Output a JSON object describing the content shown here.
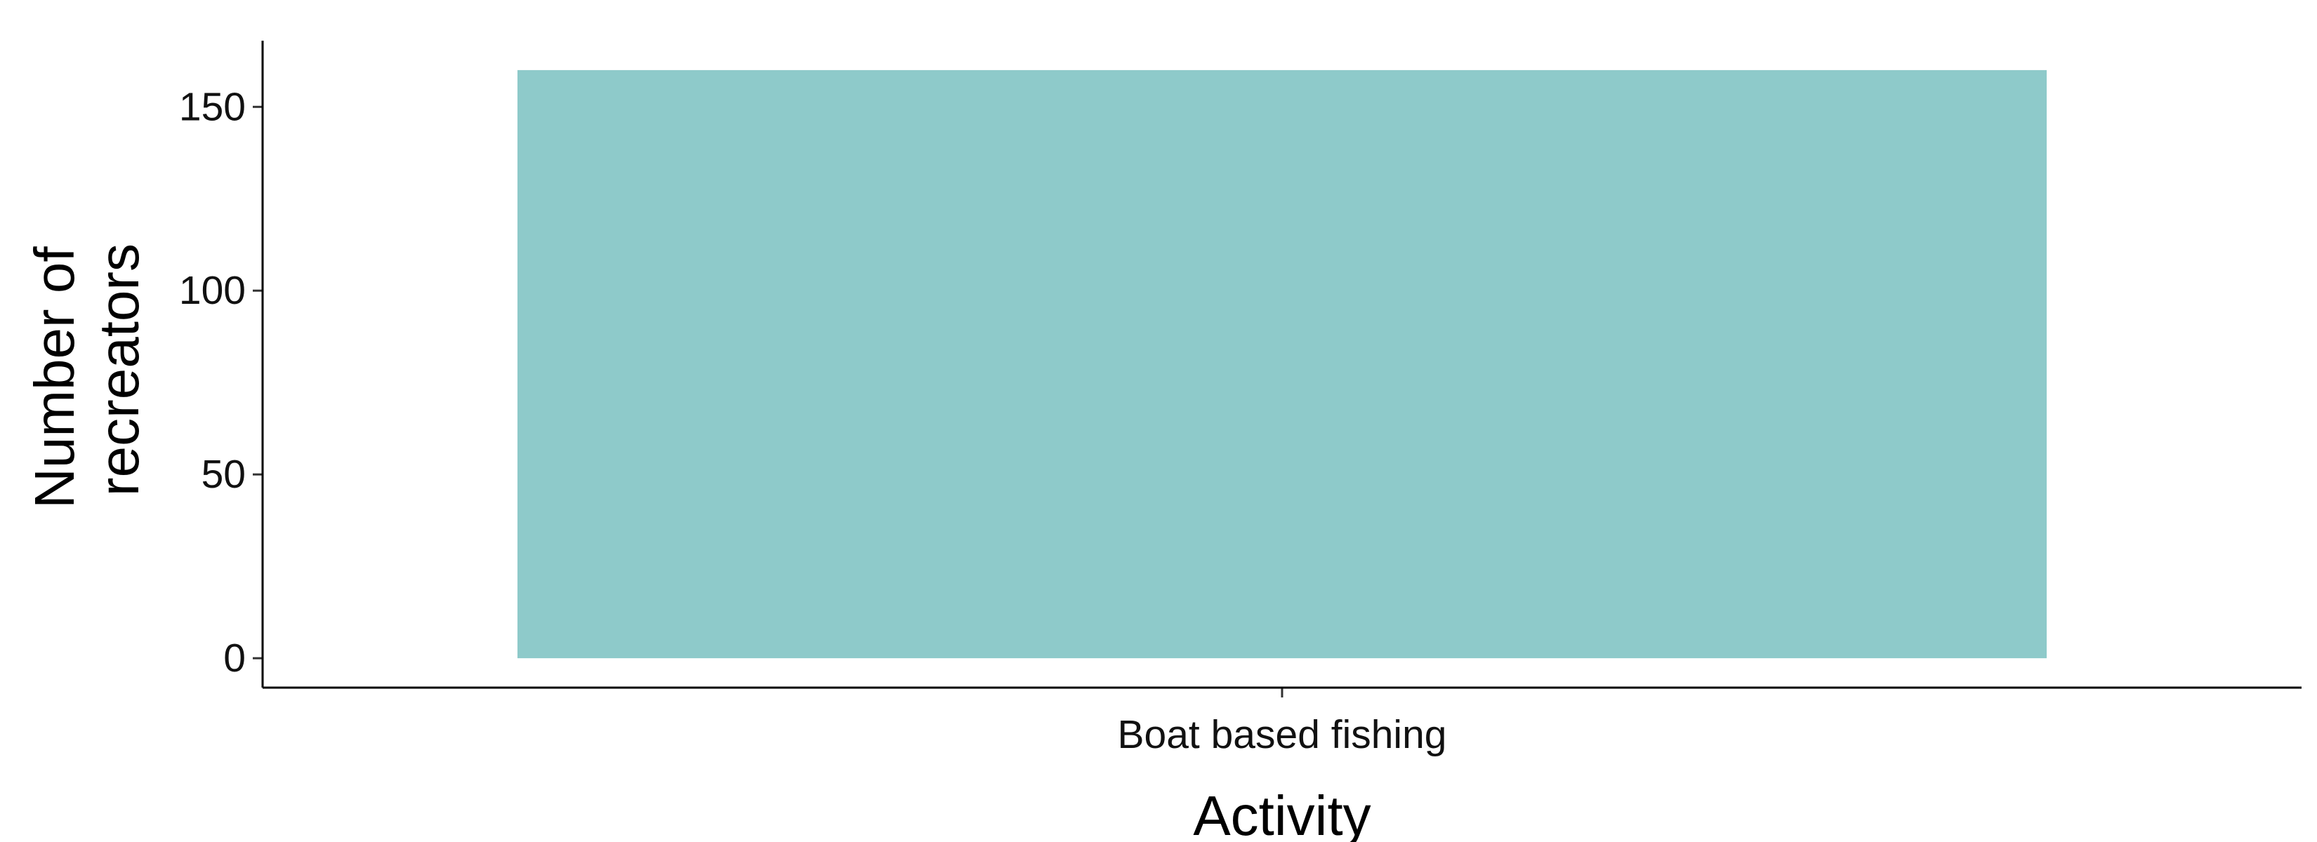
{
  "chart_data": {
    "type": "bar",
    "categories": [
      "Boat based fishing"
    ],
    "values": [
      160
    ],
    "title": "",
    "xlabel": "Activity",
    "ylabel_lines": [
      "Number of",
      "recreators"
    ],
    "ylim": [
      -8,
      168
    ],
    "yticks": [
      0,
      50,
      100,
      150
    ],
    "ytick_labels": [
      "0",
      "50",
      "100",
      "150"
    ],
    "bar_color": "#8ecaca",
    "grid": false,
    "legend": "none"
  }
}
